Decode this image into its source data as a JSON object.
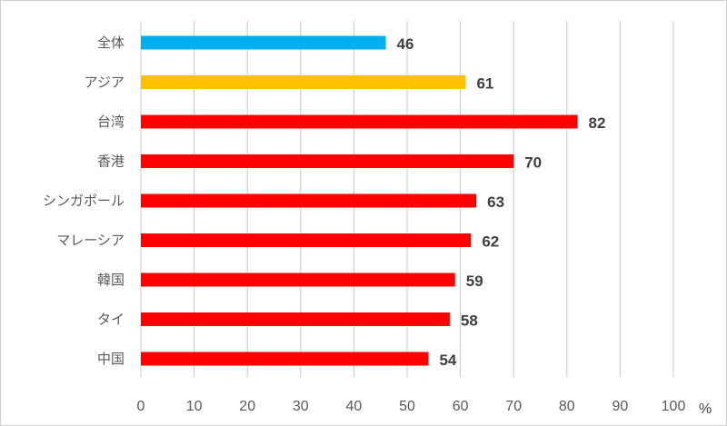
{
  "chart_data": {
    "type": "bar",
    "orientation": "horizontal",
    "categories": [
      "全体",
      "アジア",
      "台湾",
      "香港",
      "シンガポール",
      "マレーシア",
      "韓国",
      "タイ",
      "中国"
    ],
    "values": [
      46,
      61,
      82,
      70,
      63,
      62,
      59,
      58,
      54
    ],
    "bar_colors": [
      "#00b0f0",
      "#ffc000",
      "#ff0000",
      "#ff0000",
      "#ff0000",
      "#ff0000",
      "#ff0000",
      "#ff0000",
      "#ff0000"
    ],
    "xlim": [
      0,
      100
    ],
    "xticks": [
      "0",
      "10",
      "20",
      "30",
      "40",
      "50",
      "60",
      "70",
      "80",
      "90",
      "100"
    ],
    "x_unit": "%",
    "grid": "vertical",
    "legend": "none"
  }
}
